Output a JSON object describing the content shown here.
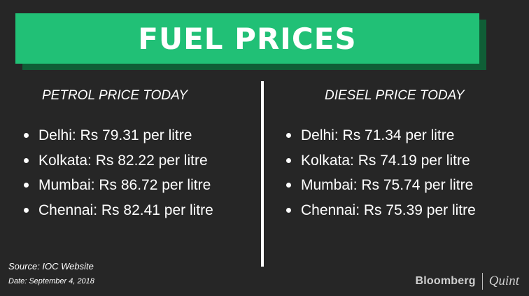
{
  "banner": {
    "title": "FUEL PRICES"
  },
  "petrol": {
    "heading": "PETROL PRICE TODAY",
    "items": [
      "Delhi: Rs 79.31 per litre",
      "Kolkata: Rs 82.22 per litre",
      "Mumbai: Rs 86.72 per litre",
      "Chennai: Rs 82.41 per litre"
    ]
  },
  "diesel": {
    "heading": "DIESEL PRICE TODAY",
    "items": [
      "Delhi: Rs 71.34 per litre",
      "Kolkata: Rs 74.19 per litre",
      "Mumbai: Rs 75.74 per litre",
      "Chennai: Rs 75.39 per litre"
    ]
  },
  "footer": {
    "source": "Source: IOC Website",
    "date": "Date: September 4, 2018"
  },
  "logo": {
    "bloomberg": "Bloomberg",
    "quint": "Quint"
  },
  "colors": {
    "background": "#262626",
    "banner": "#21c076",
    "banner_shadow": "#0f5e36",
    "text": "#ffffff"
  }
}
